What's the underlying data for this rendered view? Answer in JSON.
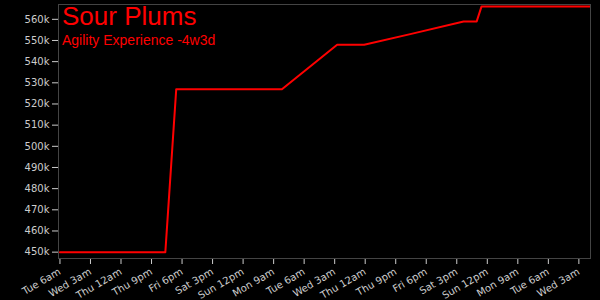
{
  "chart_data": {
    "type": "line",
    "title": "Sour Plums",
    "subtitle": "Agility Experience -4w3d",
    "x": [
      0,
      72.5,
      80,
      152.7,
      190.7,
      209.3,
      241,
      277.7,
      286.7,
      290,
      364.6
    ],
    "series": [
      {
        "name": "Agility Experience",
        "color": "#ff0000",
        "values": [
          450000,
          450000,
          527000,
          527000,
          548000,
          548000,
          553000,
          559000,
          559000,
          566000,
          566000
        ]
      }
    ],
    "xlim": [
      -1,
      365
    ],
    "xticks": [
      {
        "value": 0,
        "label": "Tue 6am"
      },
      {
        "value": 21,
        "label": "Wed 3am"
      },
      {
        "value": 42,
        "label": "Thu 12am"
      },
      {
        "value": 63,
        "label": "Thu 9pm"
      },
      {
        "value": 84,
        "label": "Fri 6pm"
      },
      {
        "value": 105,
        "label": "Sat 3pm"
      },
      {
        "value": 126,
        "label": "Sun 12pm"
      },
      {
        "value": 147,
        "label": "Mon 9am"
      },
      {
        "value": 168,
        "label": "Tue 6am"
      },
      {
        "value": 189,
        "label": "Wed 3am"
      },
      {
        "value": 210,
        "label": "Thu 12am"
      },
      {
        "value": 231,
        "label": "Thu 9pm"
      },
      {
        "value": 252,
        "label": "Fri 6pm"
      },
      {
        "value": 273,
        "label": "Sat 3pm"
      },
      {
        "value": 294,
        "label": "Sun 12pm"
      },
      {
        "value": 315,
        "label": "Mon 9am"
      },
      {
        "value": 336,
        "label": "Tue 6am"
      },
      {
        "value": 357,
        "label": "Wed 3am"
      }
    ],
    "ylim": [
      447000,
      567000
    ],
    "yticks": [
      {
        "value": 450000,
        "label": "450k"
      },
      {
        "value": 460000,
        "label": "460k"
      },
      {
        "value": 470000,
        "label": "470k"
      },
      {
        "value": 480000,
        "label": "480k"
      },
      {
        "value": 490000,
        "label": "490k"
      },
      {
        "value": 500000,
        "label": "500k"
      },
      {
        "value": 510000,
        "label": "510k"
      },
      {
        "value": 520000,
        "label": "520k"
      },
      {
        "value": 530000,
        "label": "530k"
      },
      {
        "value": 540000,
        "label": "540k"
      },
      {
        "value": 550000,
        "label": "550k"
      },
      {
        "value": 560000,
        "label": "560k"
      }
    ],
    "grid": false
  }
}
